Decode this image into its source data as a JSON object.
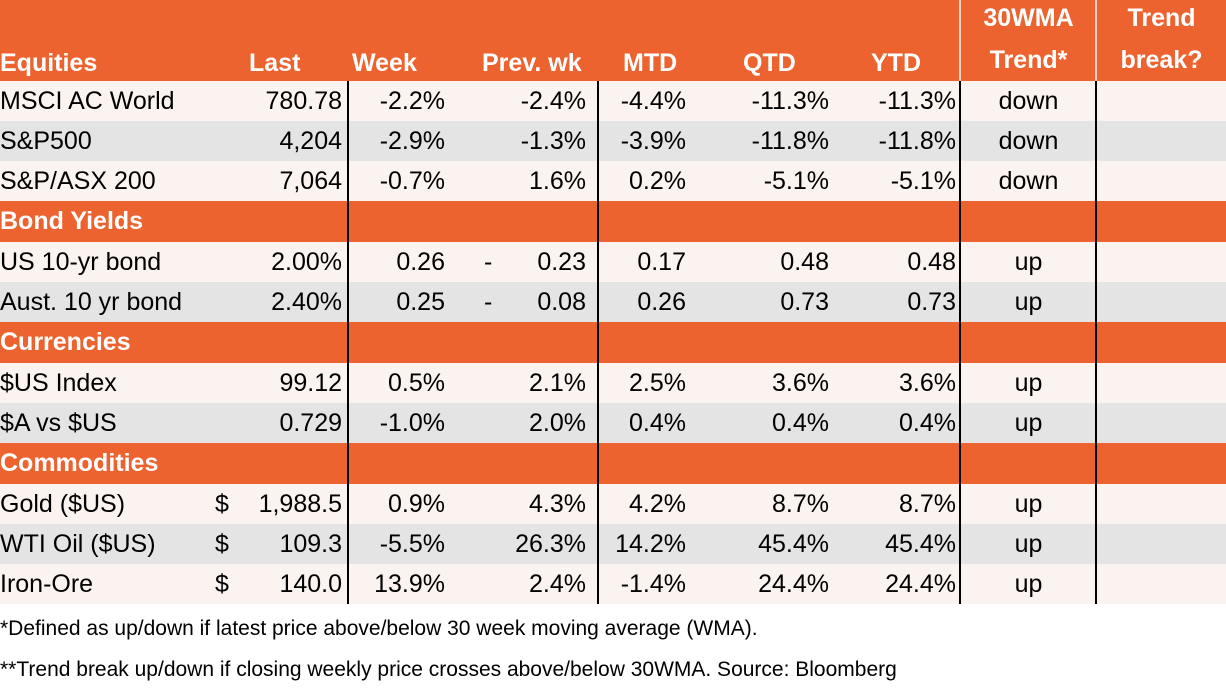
{
  "header": {
    "equities": "Equities",
    "last": "Last",
    "week": "Week",
    "prev_wk": "Prev. wk",
    "mtd": "MTD",
    "qtd": "QTD",
    "ytd": "YTD",
    "trend_line1": "30WMA",
    "trend_line2": "Trend*",
    "break_line1": "Trend",
    "break_line2": "break?"
  },
  "sections": [
    {
      "title": "",
      "rows": [
        {
          "name": "MSCI AC World",
          "last": "780.78",
          "week": "-2.2%",
          "prev": "-2.4%",
          "mtd": "-4.4%",
          "qtd": "-11.3%",
          "ytd": "-11.3%",
          "trend": "down",
          "break": ""
        },
        {
          "name": "S&P500",
          "last": "4,204",
          "week": "-2.9%",
          "prev": "-1.3%",
          "mtd": "-3.9%",
          "qtd": "-11.8%",
          "ytd": "-11.8%",
          "trend": "down",
          "break": ""
        },
        {
          "name": "S&P/ASX 200",
          "last": "7,064",
          "week": "-0.7%",
          "prev": "1.6%",
          "mtd": "0.2%",
          "qtd": "-5.1%",
          "ytd": "-5.1%",
          "trend": "down",
          "break": ""
        }
      ]
    },
    {
      "title": "Bond Yields",
      "rows": [
        {
          "name": "US 10-yr bond",
          "last": "2.00%",
          "week": "0.26",
          "prev_dash": "-",
          "prev": "0.23",
          "mtd": "0.17",
          "qtd": "0.48",
          "ytd": "0.48",
          "trend": "up",
          "break": ""
        },
        {
          "name": "Aust. 10 yr bond",
          "last": "2.40%",
          "week": "0.25",
          "prev_dash": "-",
          "prev": "0.08",
          "mtd": "0.26",
          "qtd": "0.73",
          "ytd": "0.73",
          "trend": "up",
          "break": ""
        }
      ]
    },
    {
      "title": "Currencies",
      "rows": [
        {
          "name": "$US Index",
          "last": "99.12",
          "week": "0.5%",
          "prev": "2.1%",
          "mtd": "2.5%",
          "qtd": "3.6%",
          "ytd": "3.6%",
          "trend": "up",
          "break": ""
        },
        {
          "name": "$A vs $US",
          "last": "0.729",
          "week": "-1.0%",
          "prev": "2.0%",
          "mtd": "0.4%",
          "qtd": "0.4%",
          "ytd": "0.4%",
          "trend": "up",
          "break": ""
        }
      ]
    },
    {
      "title": "Commodities",
      "rows": [
        {
          "name": "Gold ($US)",
          "dollar": "$",
          "last": "1,988.5",
          "week": "0.9%",
          "prev": "4.3%",
          "mtd": "4.2%",
          "qtd": "8.7%",
          "ytd": "8.7%",
          "trend": "up",
          "break": ""
        },
        {
          "name": "WTI Oil ($US)",
          "dollar": "$",
          "last": "109.3",
          "week": "-5.5%",
          "prev": "26.3%",
          "mtd": "14.2%",
          "qtd": "45.4%",
          "ytd": "45.4%",
          "trend": "up",
          "break": ""
        },
        {
          "name": "Iron-Ore",
          "dollar": "$",
          "last": "140.0",
          "week": "13.9%",
          "prev": "2.4%",
          "mtd": "-1.4%",
          "qtd": "24.4%",
          "ytd": "24.4%",
          "trend": "up",
          "break": ""
        }
      ]
    }
  ],
  "footnotes": {
    "note1": "*Defined as up/down if latest price above/below 30 week moving average (WMA).",
    "note2": "**Trend break up/down if closing weekly price crosses above/below 30WMA.  Source: Bloomberg"
  },
  "colors": {
    "header_bg": "#ec6330",
    "row_light": "#fbf3ef",
    "row_grey": "#e4e4e4"
  }
}
